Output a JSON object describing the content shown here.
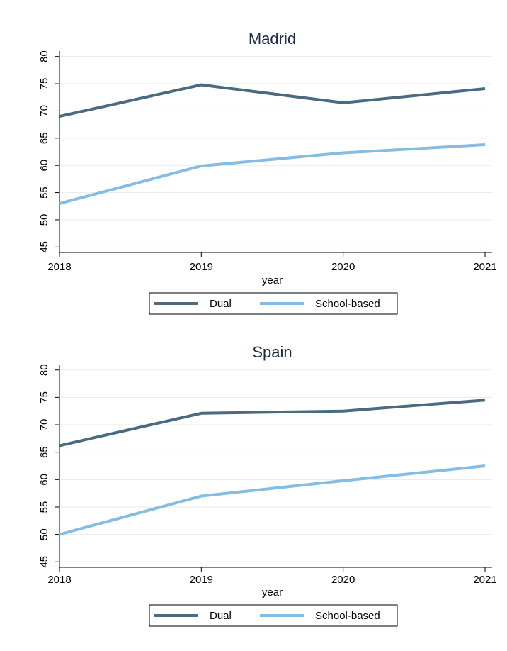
{
  "colors": {
    "dual": "#4a6a82",
    "school": "#84bde3",
    "title": "#1e2b49"
  },
  "chart_data": [
    {
      "type": "line",
      "title": "Madrid",
      "xlabel": "year",
      "ylabel": "",
      "x": [
        2018,
        2019,
        2020,
        2021
      ],
      "xticks": [
        "2018",
        "2019",
        "2020",
        "2021"
      ],
      "yticks": [
        45,
        50,
        55,
        60,
        65,
        70,
        75,
        80
      ],
      "ylim": [
        44,
        81
      ],
      "grid": true,
      "legend": "bottom",
      "series": [
        {
          "name": "Dual",
          "values": [
            69.0,
            74.8,
            71.5,
            74.1
          ]
        },
        {
          "name": "School-based",
          "values": [
            53.0,
            59.9,
            62.3,
            63.8
          ]
        }
      ]
    },
    {
      "type": "line",
      "title": "Spain",
      "xlabel": "year",
      "ylabel": "",
      "x": [
        2018,
        2019,
        2020,
        2021
      ],
      "xticks": [
        "2018",
        "2019",
        "2020",
        "2021"
      ],
      "yticks": [
        45,
        50,
        55,
        60,
        65,
        70,
        75,
        80
      ],
      "ylim": [
        44,
        81
      ],
      "grid": true,
      "legend": "bottom",
      "series": [
        {
          "name": "Dual",
          "values": [
            66.2,
            72.1,
            72.5,
            74.5
          ]
        },
        {
          "name": "School-based",
          "values": [
            50.0,
            57.0,
            59.8,
            62.5
          ]
        }
      ]
    }
  ]
}
